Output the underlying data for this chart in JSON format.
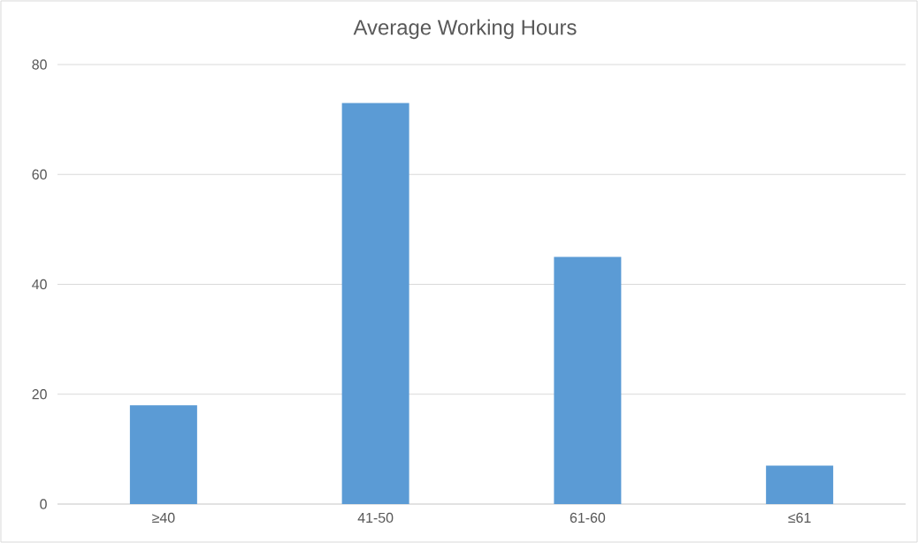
{
  "chart_data": {
    "type": "bar",
    "title": "Average Working Hours",
    "categories": [
      "≥40",
      "41-50",
      "61-60",
      "≤61"
    ],
    "values": [
      18,
      73,
      45,
      7
    ],
    "color": "#5b9bd5",
    "ylim": [
      0,
      80
    ],
    "yticks": [
      0,
      20,
      40,
      60,
      80
    ],
    "grid": "y"
  }
}
